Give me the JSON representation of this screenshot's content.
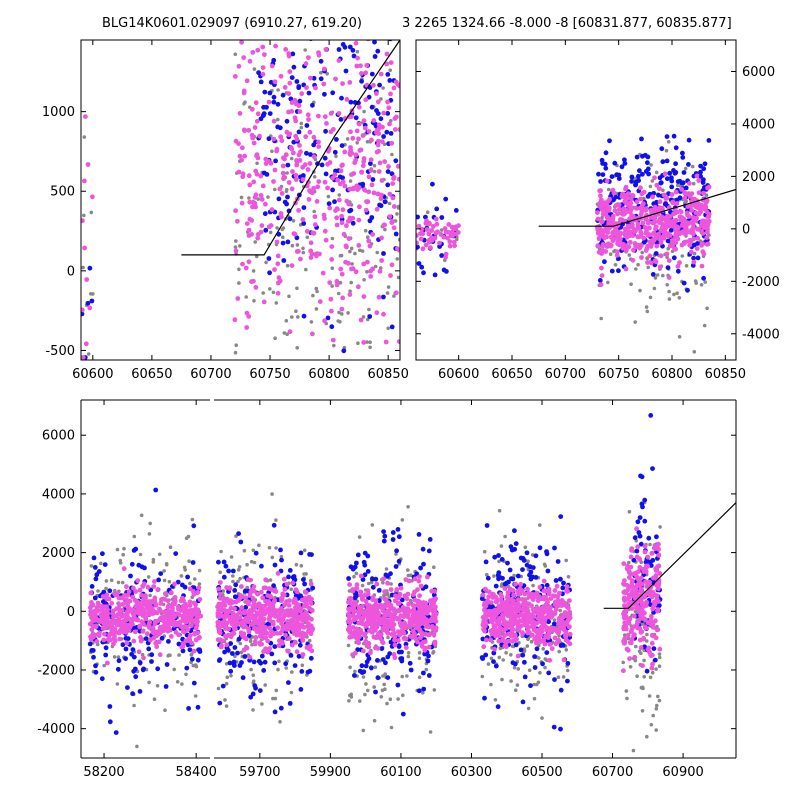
{
  "titles": {
    "left": "BLG14K0601.029097 (6910.27, 619.20)",
    "right": "3 2265 1324.66 -8.000 -8 [60831.877, 60835.877]"
  },
  "colors": {
    "blue": "#1010ee",
    "pink": "#ee55dd",
    "grey": "#888888",
    "axis": "#000000"
  },
  "chart_data": [
    {
      "type": "scatter",
      "panel": "top-left",
      "xlim": [
        60590,
        60860
      ],
      "ylim": [
        -560,
        1450
      ],
      "xticks": [
        60600,
        60650,
        60700,
        60750,
        60800,
        60850
      ],
      "yticks": [
        -500,
        0,
        500,
        1000
      ],
      "model_line": {
        "x": [
          60675,
          60745,
          60805,
          60860
        ],
        "y": [
          100,
          100,
          850,
          1450
        ]
      },
      "clusters": [
        {
          "series": "grey",
          "x": [
            60590,
            60600
          ],
          "y_mean": 100,
          "y_sd": 600,
          "n": 10
        },
        {
          "series": "pink",
          "x": [
            60590,
            60600
          ],
          "y_mean": 0,
          "y_sd": 600,
          "n": 14
        },
        {
          "series": "blue",
          "x": [
            60590,
            60600
          ],
          "y_mean": 150,
          "y_sd": 400,
          "n": 5
        },
        {
          "series": "grey",
          "x": [
            60720,
            60860
          ],
          "y_mean": 300,
          "y_sd": 500,
          "n": 200
        },
        {
          "series": "pink",
          "x": [
            60720,
            60860
          ],
          "y_mean": 600,
          "y_sd": 500,
          "n": 450
        },
        {
          "series": "blue",
          "x": [
            60740,
            60860
          ],
          "y_mean": 800,
          "y_sd": 450,
          "n": 220
        }
      ]
    },
    {
      "type": "scatter",
      "panel": "top-right",
      "xlim": [
        60560,
        60860
      ],
      "ylim": [
        -5000,
        7200
      ],
      "xticks": [
        60600,
        60650,
        60700,
        60750,
        60800,
        60850
      ],
      "yticks": [
        -4000,
        -2000,
        0,
        2000,
        4000,
        6000
      ],
      "model_line": {
        "x": [
          60675,
          60745,
          60860
        ],
        "y": [
          100,
          100,
          1500
        ]
      },
      "clusters": [
        {
          "series": "pink",
          "x": [
            60560,
            60600
          ],
          "y_mean": -300,
          "y_sd": 300,
          "n": 50
        },
        {
          "series": "blue",
          "x": [
            60560,
            60600
          ],
          "y_mean": -300,
          "y_sd": 900,
          "n": 30
        },
        {
          "series": "grey",
          "x": [
            60560,
            60600
          ],
          "y_mean": -300,
          "y_sd": 500,
          "n": 10
        },
        {
          "series": "grey",
          "x": [
            60730,
            60835
          ],
          "y_mean": -500,
          "y_sd": 1600,
          "n": 150
        },
        {
          "series": "blue",
          "x": [
            60730,
            60835
          ],
          "y_mean": 800,
          "y_sd": 1200,
          "n": 250
        },
        {
          "series": "pink",
          "x": [
            60730,
            60835
          ],
          "y_mean": 200,
          "y_sd": 700,
          "n": 500
        }
      ]
    },
    {
      "type": "scatter",
      "panel": "bottom",
      "x_breaks": [
        {
          "xlim": [
            58150,
            58430
          ],
          "xticks": [
            58200,
            58400
          ]
        },
        {
          "xlim": [
            59570,
            61050
          ],
          "xticks": [
            59700,
            59900,
            60100,
            60300,
            60500,
            60700,
            60900
          ]
        }
      ],
      "ylim": [
        -5000,
        7200
      ],
      "yticks": [
        -4000,
        -2000,
        0,
        2000,
        4000,
        6000
      ],
      "model_line": {
        "x": [
          60675,
          60745,
          61050
        ],
        "y": [
          100,
          100,
          3700
        ]
      },
      "clusters": [
        {
          "series": "grey",
          "x": [
            58170,
            58410
          ],
          "y_mean": -400,
          "y_sd": 1400,
          "n": 180
        },
        {
          "series": "blue",
          "x": [
            58170,
            58410
          ],
          "y_mean": -500,
          "y_sd": 1300,
          "n": 180
        },
        {
          "series": "pink",
          "x": [
            58170,
            58410
          ],
          "y_mean": -200,
          "y_sd": 500,
          "n": 450
        },
        {
          "series": "grey",
          "x": [
            59580,
            59850
          ],
          "y_mean": -400,
          "y_sd": 1400,
          "n": 180
        },
        {
          "series": "blue",
          "x": [
            59580,
            59850
          ],
          "y_mean": -300,
          "y_sd": 1300,
          "n": 180
        },
        {
          "series": "pink",
          "x": [
            59580,
            59850
          ],
          "y_mean": -200,
          "y_sd": 500,
          "n": 450
        },
        {
          "series": "grey",
          "x": [
            59950,
            60200
          ],
          "y_mean": -400,
          "y_sd": 1400,
          "n": 180
        },
        {
          "series": "blue",
          "x": [
            59950,
            60200
          ],
          "y_mean": -300,
          "y_sd": 1300,
          "n": 180
        },
        {
          "series": "pink",
          "x": [
            59950,
            60200
          ],
          "y_mean": -200,
          "y_sd": 500,
          "n": 450
        },
        {
          "series": "grey",
          "x": [
            60330,
            60580
          ],
          "y_mean": -400,
          "y_sd": 1400,
          "n": 180
        },
        {
          "series": "blue",
          "x": [
            60330,
            60580
          ],
          "y_mean": 0,
          "y_sd": 1300,
          "n": 200
        },
        {
          "series": "pink",
          "x": [
            60330,
            60580
          ],
          "y_mean": -200,
          "y_sd": 500,
          "n": 450
        },
        {
          "series": "grey",
          "x": [
            60730,
            60835
          ],
          "y_mean": -500,
          "y_sd": 1600,
          "n": 100
        },
        {
          "series": "blue",
          "x": [
            60760,
            60835
          ],
          "y_mean": 1000,
          "y_sd": 1500,
          "n": 90
        },
        {
          "series": "pink",
          "x": [
            60730,
            60835
          ],
          "y_mean": 300,
          "y_sd": 900,
          "n": 250
        }
      ]
    }
  ]
}
